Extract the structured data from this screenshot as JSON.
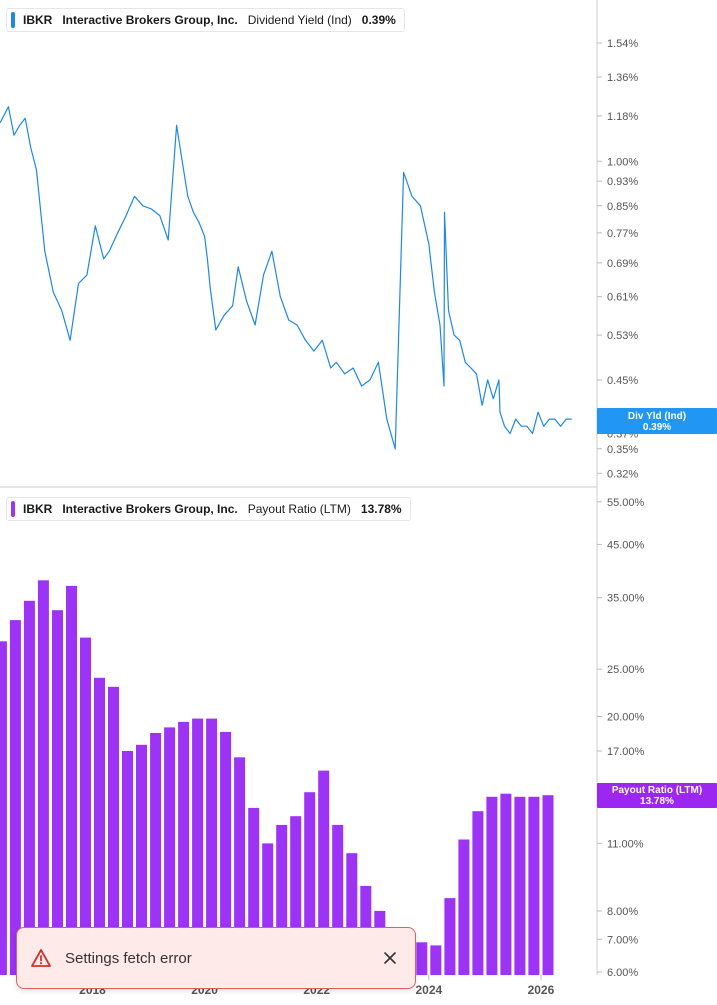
{
  "colors": {
    "yield_line": "#1e88e5",
    "yield_tag": "#2196f3",
    "payout_bar": "#9c33f5",
    "payout_tag": "#9c27f0",
    "axis_text": "#555555",
    "toast_bg": "#ffeaea",
    "toast_border": "#e06060",
    "warn": "#d32f2f"
  },
  "yield_panel": {
    "legend": {
      "ticker": "IBKR",
      "company": "Interactive Brokers Group, Inc.",
      "metric": "Dividend Yield (Ind)",
      "value": "0.39%"
    },
    "tag_label": "Div Yld (Ind)",
    "tag_value": "0.39%"
  },
  "payout_panel": {
    "legend": {
      "ticker": "IBKR",
      "company": "Interactive Brokers Group, Inc.",
      "metric": "Payout Ratio (LTM)",
      "value": "13.78%"
    },
    "tag_label": "Payout Ratio (LTM)",
    "tag_value": "13.78%"
  },
  "toast": {
    "message": "Settings fetch error",
    "icon": "warning-triangle-icon",
    "close_icon": "close-icon"
  },
  "chart_data": [
    {
      "type": "line",
      "title": "Dividend Yield (Ind)",
      "scale": "log",
      "x_ticks": [
        "2018",
        "2020",
        "2022",
        "2024",
        "2026"
      ],
      "y_ticks": [
        "0.32%",
        "0.35%",
        "0.37%",
        "0.45%",
        "0.53%",
        "0.61%",
        "0.69%",
        "0.77%",
        "0.85%",
        "0.93%",
        "1.00%",
        "1.18%",
        "1.36%",
        "1.54%"
      ],
      "y_tick_values": [
        0.32,
        0.35,
        0.37,
        0.45,
        0.53,
        0.61,
        0.69,
        0.77,
        0.85,
        0.93,
        1.0,
        1.18,
        1.36,
        1.54
      ],
      "ylim": [
        0.31,
        1.75
      ],
      "xlim": [
        2016.35,
        2027.0
      ],
      "series": [
        {
          "name": "Dividend Yield (Ind)",
          "x": [
            2016.35,
            2016.5,
            2016.6,
            2016.7,
            2016.8,
            2016.9,
            2017.0,
            2017.15,
            2017.3,
            2017.45,
            2017.6,
            2017.75,
            2017.9,
            2018.05,
            2018.2,
            2018.3,
            2018.45,
            2018.6,
            2018.75,
            2018.9,
            2019.05,
            2019.2,
            2019.35,
            2019.5,
            2019.6,
            2019.7,
            2019.8,
            2019.9,
            2020.0,
            2020.05,
            2020.1,
            2020.2,
            2020.35,
            2020.5,
            2020.6,
            2020.75,
            2020.9,
            2021.05,
            2021.2,
            2021.35,
            2021.5,
            2021.65,
            2021.8,
            2021.95,
            2022.1,
            2022.25,
            2022.35,
            2022.5,
            2022.65,
            2022.8,
            2022.95,
            2023.1,
            2023.25,
            2023.4,
            2023.55,
            2023.7,
            2023.85,
            2024.0,
            2024.1,
            2024.2,
            2024.27,
            2024.28,
            2024.35,
            2024.45,
            2024.55,
            2024.65,
            2024.75,
            2024.85,
            2024.95,
            2025.05,
            2025.15,
            2025.25,
            2025.27,
            2025.35,
            2025.45,
            2025.55,
            2025.65,
            2025.75,
            2025.85,
            2025.95,
            2026.05,
            2026.15,
            2026.25,
            2026.35,
            2026.45,
            2026.55
          ],
          "y": [
            1.15,
            1.22,
            1.1,
            1.14,
            1.17,
            1.05,
            0.97,
            0.72,
            0.62,
            0.58,
            0.52,
            0.64,
            0.66,
            0.79,
            0.7,
            0.72,
            0.77,
            0.82,
            0.88,
            0.85,
            0.84,
            0.82,
            0.75,
            1.14,
            1.0,
            0.88,
            0.83,
            0.8,
            0.76,
            0.7,
            0.63,
            0.54,
            0.57,
            0.59,
            0.68,
            0.6,
            0.55,
            0.66,
            0.72,
            0.61,
            0.56,
            0.55,
            0.52,
            0.5,
            0.52,
            0.47,
            0.48,
            0.46,
            0.47,
            0.44,
            0.45,
            0.48,
            0.39,
            0.35,
            0.96,
            0.88,
            0.85,
            0.74,
            0.62,
            0.55,
            0.44,
            0.83,
            0.58,
            0.53,
            0.52,
            0.48,
            0.47,
            0.46,
            0.41,
            0.45,
            0.42,
            0.45,
            0.4,
            0.38,
            0.37,
            0.39,
            0.38,
            0.38,
            0.37,
            0.4,
            0.38,
            0.39,
            0.39,
            0.38,
            0.39,
            0.39
          ]
        }
      ]
    },
    {
      "type": "bar",
      "title": "Payout Ratio (LTM)",
      "scale": "log",
      "x_ticks": [
        "2018",
        "2020",
        "2022",
        "2024",
        "2026"
      ],
      "y_ticks": [
        "6.00%",
        "7.00%",
        "8.00%",
        "11.00%",
        "17.00%",
        "20.00%",
        "25.00%",
        "35.00%",
        "45.00%",
        "55.00%"
      ],
      "y_tick_values": [
        6,
        7,
        8,
        11,
        17,
        20,
        25,
        35,
        45,
        55
      ],
      "ylim": [
        6,
        56
      ],
      "xlim": [
        2016.35,
        2027.0
      ],
      "categories": [
        "Q2 2016",
        "Q3 2016",
        "Q4 2016",
        "Q1 2017",
        "Q2 2017",
        "Q3 2017",
        "Q4 2017",
        "Q1 2018",
        "Q2 2018",
        "Q3 2018",
        "Q4 2018",
        "Q1 2019",
        "Q2 2019",
        "Q3 2019",
        "Q4 2019",
        "Q1 2020",
        "Q2 2020",
        "Q3 2020",
        "Q4 2020",
        "Q1 2021",
        "Q2 2021",
        "Q3 2021",
        "Q4 2021",
        "Q1 2022",
        "Q2 2022",
        "Q3 2022",
        "Q4 2022",
        "Q1 2023",
        "Q2 2023",
        "Q3 2023",
        "Q4 2023",
        "Q1 2024",
        "Q2 2024",
        "Q3 2024",
        "Q4 2024",
        "Q1 2025",
        "Q2 2025",
        "Q3 2025",
        "Q4 2025",
        "Q1 2026"
      ],
      "series": [
        {
          "name": "Payout Ratio (LTM)",
          "values": [
            28.5,
            31.5,
            34.5,
            38.0,
            33.0,
            37.0,
            29.0,
            24.0,
            23.0,
            17.0,
            17.5,
            18.5,
            19.0,
            19.5,
            19.8,
            19.8,
            18.6,
            16.5,
            13.0,
            11.0,
            12.0,
            12.5,
            14.0,
            15.5,
            12.0,
            10.5,
            9.0,
            8.0,
            7.2,
            7.0,
            6.9,
            6.8,
            8.5,
            11.2,
            12.8,
            13.7,
            13.9,
            13.7,
            13.7,
            13.8
          ]
        }
      ]
    }
  ]
}
